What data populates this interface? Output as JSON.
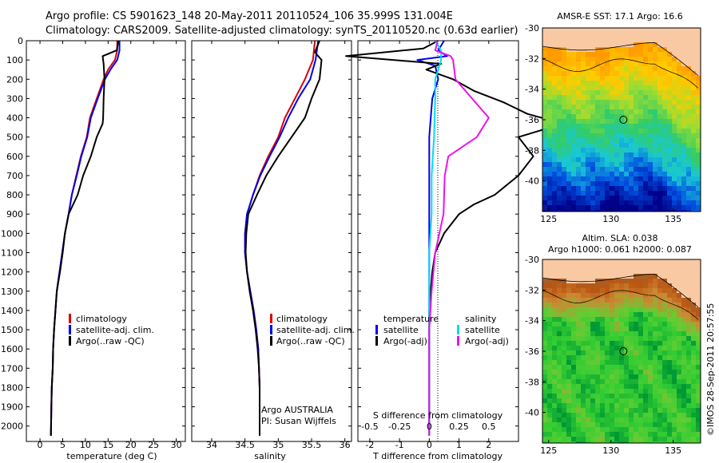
{
  "header": {
    "line1": "Argo profile: CS 5901623_148 20-May-2011 20110524_106 35.999S 131.004E",
    "line2": "Climatology: CARS2009. Satellite-adjusted climatology: synTS_20110520.nc (0.63d earlier)"
  },
  "colors": {
    "climatology": "#dd0000",
    "satellite": "#0000ee",
    "argo": "#000000",
    "salinity_satellite": "#00ddee",
    "salinity_argo": "#ee11ee",
    "land": "#f9c9a4",
    "sst_ramp": [
      "#00008a",
      "#0050e0",
      "#19c8d6",
      "#33cc66",
      "#99dd33",
      "#ffcc00",
      "#ff9900"
    ],
    "sla_ramp": [
      "#009933",
      "#33cc33",
      "#66cc33",
      "#cc8833",
      "#bb5511",
      "#996633"
    ]
  },
  "chart_data": [
    {
      "type": "line",
      "panel": "temperature",
      "xlabel": "temperature (deg C)",
      "xlim": [
        -3,
        32
      ],
      "xticks": [
        0,
        5,
        10,
        15,
        20,
        25,
        30
      ],
      "ylim": [
        2080,
        0
      ],
      "yticks": [
        0,
        100,
        200,
        300,
        400,
        500,
        600,
        700,
        800,
        900,
        1000,
        1100,
        1200,
        1300,
        1400,
        1500,
        1600,
        1700,
        1800,
        1900,
        2000
      ],
      "legend": {
        "placement": "center-left",
        "entries": [
          "climatology",
          "satellite-adj. clim.",
          "Argo(..raw -QC)"
        ]
      },
      "series": [
        {
          "name": "climatology",
          "color_key": "climatology",
          "x": [
            17.0,
            17.0,
            16.5,
            15.0,
            14.0,
            12.5,
            11.0,
            10.3,
            9.0,
            8.0,
            7.0,
            6.3,
            5.5,
            4.9,
            4.3,
            3.7,
            3.4,
            3.1,
            2.9,
            2.8,
            2.6,
            2.5,
            2.4
          ],
          "y": [
            0,
            50,
            100,
            150,
            200,
            300,
            400,
            500,
            600,
            700,
            800,
            900,
            1000,
            1100,
            1200,
            1300,
            1400,
            1500,
            1600,
            1700,
            1800,
            1900,
            2050
          ]
        },
        {
          "name": "satellite-adj. clim.",
          "color_key": "satellite",
          "x": [
            17.5,
            17.5,
            17.0,
            15.5,
            14.3,
            12.7,
            11.2,
            10.4,
            9.1,
            8.1,
            7.0,
            6.3,
            5.5,
            4.9,
            4.3,
            3.7,
            3.4,
            3.1,
            2.9,
            2.8,
            2.6,
            2.5,
            2.4
          ],
          "y": [
            0,
            50,
            100,
            150,
            200,
            300,
            400,
            500,
            600,
            700,
            800,
            900,
            1000,
            1100,
            1200,
            1300,
            1400,
            1500,
            1600,
            1700,
            1800,
            1900,
            2050
          ]
        },
        {
          "name": "Argo(..raw -QC)",
          "color_key": "argo",
          "x": [
            17.3,
            16.9,
            13.8,
            14.0,
            14.2,
            14.0,
            13.9,
            13.8,
            12.5,
            11.2,
            9.5,
            8.3,
            6.3,
            5.5,
            5.0,
            4.4,
            3.7,
            3.4,
            3.1,
            2.9,
            2.8,
            2.6,
            2.5,
            2.4
          ],
          "y": [
            0,
            50,
            80,
            120,
            200,
            300,
            400,
            430,
            500,
            600,
            700,
            800,
            900,
            1000,
            1100,
            1200,
            1300,
            1400,
            1500,
            1600,
            1700,
            1800,
            1900,
            2050
          ]
        }
      ]
    },
    {
      "type": "line",
      "panel": "salinity",
      "xlabel": "salinity",
      "xlim": [
        33.7,
        36.1
      ],
      "xticks": [
        34,
        34.5,
        35,
        35.5,
        36
      ],
      "ylim": [
        2080,
        0
      ],
      "annotation": [
        "Argo AUSTRALIA",
        "PI: Susan Wijffels"
      ],
      "legend": {
        "placement": "center-right",
        "entries": [
          "climatology",
          "satellite-adj. clim.",
          "Argo(..raw -QC)"
        ]
      },
      "series": [
        {
          "name": "climatology",
          "color_key": "climatology",
          "x": [
            35.55,
            35.52,
            35.4,
            35.25,
            35.1,
            35.0,
            34.85,
            34.72,
            34.62,
            34.53,
            34.5,
            34.5,
            34.53,
            34.58,
            34.63,
            34.67,
            34.7,
            34.71,
            34.72,
            34.72,
            34.72
          ],
          "y": [
            0,
            100,
            200,
            300,
            400,
            500,
            600,
            700,
            800,
            900,
            1000,
            1100,
            1200,
            1300,
            1400,
            1500,
            1600,
            1700,
            1800,
            1900,
            2050
          ]
        },
        {
          "name": "satellite-adj. clim.",
          "color_key": "satellite",
          "x": [
            35.6,
            35.56,
            35.48,
            35.3,
            35.15,
            35.02,
            34.87,
            34.73,
            34.62,
            34.53,
            34.5,
            34.5,
            34.53,
            34.58,
            34.63,
            34.67,
            34.7,
            34.71,
            34.72,
            34.72,
            34.72
          ],
          "y": [
            0,
            100,
            200,
            300,
            400,
            500,
            600,
            700,
            800,
            900,
            1000,
            1100,
            1200,
            1300,
            1400,
            1500,
            1600,
            1700,
            1800,
            1900,
            2050
          ]
        },
        {
          "name": "Argo(..raw -QC)",
          "color_key": "argo",
          "x": [
            35.62,
            35.55,
            35.6,
            35.65,
            35.62,
            35.5,
            35.4,
            35.2,
            35.0,
            34.82,
            34.68,
            34.55,
            34.52,
            34.51,
            34.53,
            34.57,
            34.62,
            34.66,
            34.69,
            34.71,
            34.72,
            34.72,
            34.72
          ],
          "y": [
            0,
            60,
            80,
            100,
            200,
            300,
            400,
            500,
            600,
            700,
            800,
            900,
            1000,
            1100,
            1200,
            1300,
            1400,
            1500,
            1600,
            1700,
            1800,
            1900,
            2050
          ]
        }
      ]
    },
    {
      "type": "line",
      "panel": "difference",
      "xlabel": "T difference from climatology",
      "xlabel_top": "S difference from climatology",
      "xlim": [
        -2.4,
        3.0
      ],
      "xticks": [
        -2,
        -1,
        0,
        1,
        2
      ],
      "s_ticks": [
        -0.5,
        -0.25,
        0,
        0.25,
        0.5
      ],
      "s_tick_labels": [
        "-0.5",
        "-0.25",
        "0",
        "0.25",
        "0.5"
      ],
      "s_scale": 0.25,
      "ylim": [
        2080,
        0
      ],
      "legend": {
        "placement": "center",
        "temperature_heading": "temperature",
        "salinity_heading": "salinity",
        "entries": [
          "satellite",
          "Argo(-adj)"
        ]
      },
      "series": [
        {
          "name": "temperature satellite",
          "color_key": "satellite",
          "x": [
            0.5,
            0.3,
            0.6,
            -0.4,
            0.2,
            0.3,
            0.1,
            0.0,
            0.0,
            0.0,
            0.0,
            0.0,
            0.0
          ],
          "y": [
            0,
            50,
            80,
            100,
            130,
            200,
            300,
            500,
            700,
            900,
            1200,
            1500,
            2050
          ]
        },
        {
          "name": "temperature Argo(-adj)",
          "color_key": "argo",
          "x": [
            0.3,
            -0.2,
            -2.8,
            0.4,
            -0.1,
            0.8,
            1.5,
            2.5,
            3.3,
            4.5,
            3.0,
            3.5,
            3.0,
            2.2,
            1.5,
            1.0,
            0.5,
            0.2,
            0.1,
            0.0,
            0.0,
            0.0
          ],
          "y": [
            0,
            40,
            80,
            120,
            150,
            200,
            260,
            320,
            380,
            430,
            500,
            600,
            700,
            800,
            850,
            900,
            1000,
            1100,
            1200,
            1400,
            1700,
            2050
          ]
        },
        {
          "name": "salinity satellite",
          "color_key": "salinity_satellite",
          "x": [
            0.05,
            0.1,
            0.1,
            0.05,
            0.05,
            0.04,
            0.02,
            0.02,
            0.0,
            0.0,
            0.0,
            0.0
          ],
          "y": [
            0,
            50,
            100,
            200,
            300,
            500,
            700,
            900,
            1100,
            1300,
            1600,
            2050
          ]
        },
        {
          "name": "salinity Argo(-adj)",
          "color_key": "salinity_argo",
          "x": [
            0.07,
            0.05,
            0.18,
            0.2,
            0.22,
            0.5,
            0.4,
            0.16,
            0.13,
            0.12,
            0.05,
            0.02,
            0.0,
            0.0,
            0.0
          ],
          "y": [
            0,
            50,
            80,
            100,
            200,
            400,
            500,
            600,
            700,
            900,
            1100,
            1300,
            1500,
            1700,
            2050
          ]
        }
      ]
    },
    {
      "type": "heatmap",
      "panel": "sst-map",
      "title": "AMSR-E SST: 17.1 Argo: 16.6",
      "xlim": [
        124.5,
        137.2
      ],
      "ylim": [
        -42,
        -30
      ],
      "xticks": [
        125,
        130,
        135
      ],
      "yticks": [
        -30,
        -32,
        -34,
        -36,
        -38,
        -40
      ],
      "float": {
        "lon": 131.0,
        "lat": -36.0
      }
    },
    {
      "type": "heatmap",
      "panel": "sla-map",
      "title_lines": [
        "Altim. SLA: 0.038",
        "Argo h1000: 0.061 h2000: 0.087"
      ],
      "xlim": [
        124.5,
        137.2
      ],
      "ylim": [
        -42,
        -30
      ],
      "xticks": [
        125,
        130,
        135
      ],
      "yticks": [
        -30,
        -32,
        -34,
        -36,
        -38,
        -40
      ],
      "float": {
        "lon": 131.0,
        "lat": -36.0
      }
    }
  ],
  "credit": "©IMOS 28-Sep-2011 20:57:55"
}
